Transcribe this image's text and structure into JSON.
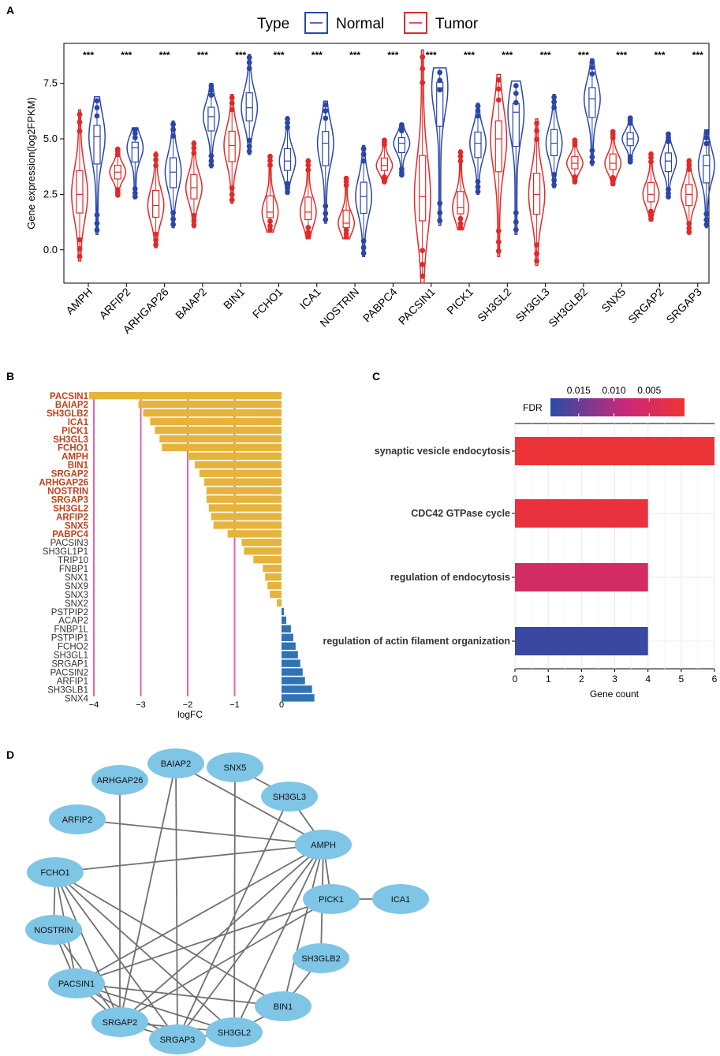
{
  "panels": {
    "a": "A",
    "b": "B",
    "c": "C",
    "d": "D"
  },
  "colors": {
    "normal": "#2b46a8",
    "tumor": "#e02a2a",
    "bar_down": "#e6b43c",
    "bar_up": "#2f72b6",
    "highlight_label": "#c0421a",
    "ref_line": "#e066a6",
    "node": "#7ec5e6",
    "edge": "#707070",
    "fdr_low": "#2b4ba6",
    "fdr_mid": "#c7287a",
    "fdr_high": "#ee3434"
  },
  "chart_data": [
    {
      "id": "A",
      "type": "violin",
      "legend_title": "Type",
      "legend": [
        "Normal",
        "Tumor"
      ],
      "ylabel": "Gene expression(log2FPKM)",
      "ylim": [
        -1.5,
        9.3
      ],
      "yticks": [
        0.0,
        2.5,
        5.0,
        7.5
      ],
      "ytick_labels": [
        "0.0",
        "2.5",
        "5.0",
        "7.5"
      ],
      "significance": "***",
      "categories": [
        "AMPH",
        "ARFIP2",
        "ARHGAP26",
        "BAIAP2",
        "BIN1",
        "FCHO1",
        "ICA1",
        "NOSTRIN",
        "PABPC4",
        "PACSIN1",
        "PICK1",
        "SH3GL2",
        "SH3GL3",
        "SH3GLB2",
        "SNX5",
        "SRGAP2",
        "SRGAP3"
      ],
      "series": [
        {
          "name": "Tumor",
          "median": [
            2.5,
            3.5,
            2.0,
            2.8,
            4.7,
            1.7,
            1.7,
            1.2,
            3.8,
            2.4,
            1.9,
            5.0,
            2.5,
            3.9,
            3.9,
            2.5,
            2.5
          ],
          "min": [
            -0.5,
            2.4,
            0.1,
            1.0,
            2.1,
            0.8,
            0.5,
            0.5,
            3.0,
            -1.5,
            0.9,
            -0.3,
            -0.7,
            3.0,
            2.9,
            1.3,
            0.7
          ],
          "max": [
            6.3,
            4.6,
            4.4,
            4.9,
            7.0,
            4.3,
            4.1,
            3.3,
            5.0,
            9.0,
            4.5,
            7.9,
            5.9,
            5.0,
            5.4,
            4.4,
            4.1
          ]
        },
        {
          "name": "Normal",
          "median": [
            5.1,
            4.6,
            3.5,
            6.0,
            6.4,
            4.0,
            4.8,
            2.4,
            4.8,
            7.3,
            4.8,
            6.2,
            4.8,
            6.8,
            5.0,
            4.0,
            3.8
          ],
          "min": [
            0.7,
            2.3,
            1.0,
            3.7,
            4.3,
            2.5,
            1.2,
            -0.3,
            3.3,
            1.1,
            2.5,
            0.7,
            2.8,
            3.8,
            3.9,
            2.3,
            1.0
          ],
          "max": [
            6.9,
            5.5,
            5.8,
            7.5,
            8.8,
            6.0,
            6.7,
            4.7,
            5.7,
            8.2,
            6.6,
            7.6,
            7.0,
            8.6,
            6.0,
            5.3,
            5.4
          ]
        }
      ]
    },
    {
      "id": "B",
      "type": "bar",
      "orientation": "horizontal",
      "xlabel": "logFC",
      "xticks": [
        -4,
        -3,
        -2,
        -1,
        0
      ],
      "xtick_labels": [
        "−4",
        "−3",
        "−2",
        "−1",
        "0"
      ],
      "reference_lines": [
        -4,
        -3,
        -2,
        -1
      ],
      "categories": [
        "PACSIN1",
        "BAIAP2",
        "SH3GLB2",
        "ICA1",
        "PICK1",
        "SH3GL3",
        "FCHO1",
        "AMPH",
        "BIN1",
        "SRGAP2",
        "ARHGAP26",
        "NOSTRIN",
        "SRGAP3",
        "SH3GL2",
        "ARFIP2",
        "SNX5",
        "PABPC4",
        "PACSIN3",
        "SH3GL1P1",
        "TRIP10",
        "FNBP1",
        "SNX1",
        "SNX9",
        "SNX3",
        "SNX2",
        "PSTPIP2",
        "ACAP2",
        "FNBP1L",
        "PSTPIP1",
        "FCHO2",
        "SH3GL1",
        "SRGAP1",
        "PACSIN2",
        "ARFIP1",
        "SH3GLB1",
        "SNX4"
      ],
      "values": [
        -4.1,
        -3.05,
        -2.95,
        -2.8,
        -2.7,
        -2.6,
        -2.55,
        -2.0,
        -1.85,
        -1.75,
        -1.65,
        -1.6,
        -1.6,
        -1.55,
        -1.5,
        -1.45,
        -1.15,
        -0.85,
        -0.8,
        -0.6,
        -0.4,
        -0.35,
        -0.3,
        -0.25,
        -0.1,
        0.05,
        0.1,
        0.2,
        0.25,
        0.3,
        0.35,
        0.4,
        0.45,
        0.5,
        0.65,
        0.7
      ],
      "highlighted_count": 17
    },
    {
      "id": "C",
      "type": "bar",
      "orientation": "horizontal",
      "xlabel": "Gene count",
      "xlim": [
        0,
        6
      ],
      "xticks": [
        0,
        1,
        2,
        3,
        4,
        5,
        6
      ],
      "xtick_labels": [
        "0",
        "1",
        "2",
        "3",
        "4",
        "5",
        "6"
      ],
      "legend_title": "FDR",
      "legend_ticks": [
        0.015,
        0.01,
        0.005
      ],
      "legend_tick_labels": [
        "0.015",
        "0.010",
        "0.005"
      ],
      "legend_range": [
        0.019,
        0.0
      ],
      "categories": [
        "synaptic vesicle endocytosis",
        "CDC42 GTPase cycle",
        "regulation of endocytosis",
        "regulation of actin filament organization"
      ],
      "values": [
        6,
        4,
        4,
        4
      ],
      "fdr": [
        0.0004,
        0.0012,
        0.006,
        0.018
      ]
    }
  ],
  "network": {
    "nodes": [
      "BAIAP2",
      "SNX5",
      "ARHGAP26",
      "SH3GL3",
      "ARFIP2",
      "AMPH",
      "FCHO1",
      "PICK1",
      "ICA1",
      "NOSTRIN",
      "SH3GLB2",
      "PACSIN1",
      "BIN1",
      "SRGAP2",
      "SRGAP3",
      "SH3GL2"
    ],
    "edges": [
      [
        "BAIAP2",
        "AMPH"
      ],
      [
        "BAIAP2",
        "SRGAP2"
      ],
      [
        "BAIAP2",
        "SRGAP3"
      ],
      [
        "SNX5",
        "SH3GL3"
      ],
      [
        "SNX5",
        "SH3GL2"
      ],
      [
        "ARHGAP26",
        "SRGAP2"
      ],
      [
        "SH3GL3",
        "AMPH"
      ],
      [
        "SH3GL3",
        "SRGAP3"
      ],
      [
        "ARFIP2",
        "AMPH"
      ],
      [
        "AMPH",
        "FCHO1"
      ],
      [
        "AMPH",
        "PICK1"
      ],
      [
        "AMPH",
        "SH3GLB2"
      ],
      [
        "AMPH",
        "PACSIN1"
      ],
      [
        "AMPH",
        "BIN1"
      ],
      [
        "AMPH",
        "SRGAP2"
      ],
      [
        "AMPH",
        "SRGAP3"
      ],
      [
        "AMPH",
        "SH3GL2"
      ],
      [
        "FCHO1",
        "NOSTRIN"
      ],
      [
        "FCHO1",
        "PACSIN1"
      ],
      [
        "FCHO1",
        "SRGAP2"
      ],
      [
        "FCHO1",
        "SRGAP3"
      ],
      [
        "FCHO1",
        "SH3GL2"
      ],
      [
        "FCHO1",
        "BIN1"
      ],
      [
        "PICK1",
        "ICA1"
      ],
      [
        "PICK1",
        "PACSIN1"
      ],
      [
        "PICK1",
        "SRGAP2"
      ],
      [
        "NOSTRIN",
        "PACSIN1"
      ],
      [
        "NOSTRIN",
        "SRGAP2"
      ],
      [
        "SH3GLB2",
        "BIN1"
      ],
      [
        "PACSIN1",
        "SRGAP2"
      ],
      [
        "PACSIN1",
        "SRGAP3"
      ],
      [
        "PACSIN1",
        "SH3GL2"
      ],
      [
        "PACSIN1",
        "BIN1"
      ],
      [
        "BIN1",
        "SH3GL2"
      ],
      [
        "SRGAP2",
        "SRGAP3"
      ],
      [
        "SRGAP2",
        "SH3GL2"
      ],
      [
        "SRGAP3",
        "SH3GL2"
      ]
    ]
  }
}
